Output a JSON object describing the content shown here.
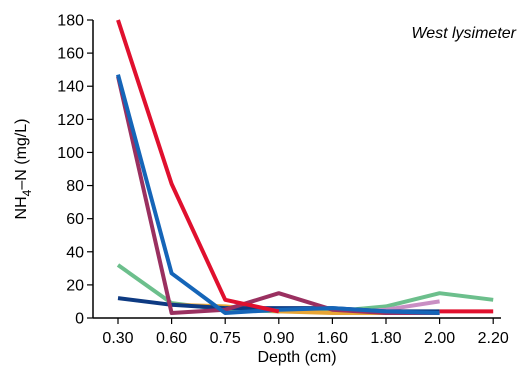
{
  "chart_data": {
    "type": "line",
    "title": "",
    "annotation": "West lysimeter",
    "xlabel": "Depth (cm)",
    "ylabel": {
      "base": "NH",
      "sub": "4",
      "rest": "–N (mg/L)"
    },
    "categories": [
      "0.30",
      "0.60",
      "0.75",
      "0.90",
      "1.60",
      "1.80",
      "2.00",
      "2.20"
    ],
    "ylim": [
      0,
      180
    ],
    "yticks": [
      "0",
      "20",
      "40",
      "60",
      "80",
      "100",
      "120",
      "140",
      "160",
      "180"
    ],
    "grid": false,
    "legend": "none",
    "series": [
      {
        "color": "#6cbf8c",
        "values": [
          32,
          9,
          5,
          4,
          4,
          7,
          15,
          11
        ]
      },
      {
        "color": "#c98fc4",
        "values": [
          null,
          null,
          null,
          null,
          3,
          5,
          10,
          null
        ]
      },
      {
        "color": "#e8a535",
        "values": [
          null,
          8,
          7,
          4,
          3,
          3,
          4,
          null
        ]
      },
      {
        "color": "#0d3a82",
        "values": [
          12,
          8,
          6,
          6,
          6,
          4,
          4,
          null
        ]
      },
      {
        "color": "#9a3060",
        "values": [
          146,
          3,
          5,
          15,
          5,
          3,
          3,
          null
        ]
      },
      {
        "color": "#1565b8",
        "values": [
          147,
          27,
          3,
          5,
          6,
          4,
          3,
          null
        ]
      },
      {
        "color": "#e0102e",
        "values": [
          180,
          81,
          11,
          4,
          null,
          null,
          4,
          4
        ]
      }
    ]
  }
}
